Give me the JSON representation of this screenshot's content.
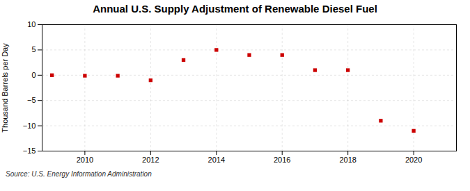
{
  "chart_data": {
    "type": "scatter",
    "title": "Annual U.S. Supply Adjustment of Renewable Diesel Fuel",
    "ylabel": "Thousand Barrels per Day",
    "source": "Source: U.S. Energy Information Administration",
    "x": [
      2009,
      2010,
      2011,
      2012,
      2013,
      2014,
      2015,
      2016,
      2017,
      2018,
      2019,
      2020
    ],
    "values": [
      0.0,
      -0.1,
      -0.1,
      -1.0,
      3.0,
      5.0,
      4.0,
      4.0,
      1.0,
      1.0,
      -9.0,
      -11.0
    ],
    "color": "#cc0000",
    "marker": "square",
    "xlim": [
      2008.7,
      2021.3
    ],
    "xticks": [
      2010,
      2012,
      2014,
      2016,
      2018,
      2020
    ],
    "ylim": [
      -15,
      10
    ],
    "yticks": [
      -15,
      -10,
      -5,
      0,
      5,
      10
    ],
    "grid": true
  }
}
